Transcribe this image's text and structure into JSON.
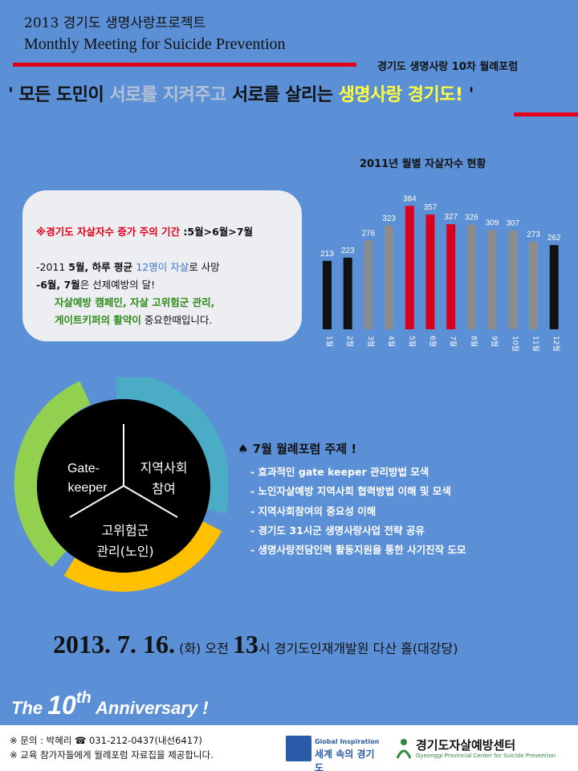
{
  "header": {
    "title_ko": "2013 경기도 생명사랑프로젝트",
    "title_en": "Monthly Meeting for Suicide Prevention",
    "forum_sub": "경기도 생명사랑 10차 월례포럼"
  },
  "slogan": {
    "part1": "' 모든 도민이 ",
    "part2": "서로를 지켜주고 ",
    "part3": "서로를 살리는 ",
    "part4": "생명사랑 경기도!",
    "part5": " '"
  },
  "warning": {
    "title_red": "※경기도 자살자수 증가 주의 기간",
    "title_black": " :5월>6월>7월",
    "l1_a": "-2011 ",
    "l1_b": "5월",
    "l1_c": ", 하루 평균 ",
    "l1_d": "12명이 자살",
    "l1_e": "로 사망",
    "l2_a": "-6월, 7월",
    "l2_b": "은 선제예방의 달!",
    "l3": "자살예방 캠페인, 자살 고위험군 관리,",
    "l4_a": "게이트키퍼의 활약이",
    "l4_b": " 중요한때입니다."
  },
  "chart_data": {
    "type": "bar",
    "title": "2011년 월별 자살자수 현황",
    "categories": [
      "1월",
      "2월",
      "3월",
      "4월",
      "5월",
      "6월",
      "7월",
      "8월",
      "9월",
      "10월",
      "11월",
      "12월"
    ],
    "values": [
      213,
      223,
      276,
      323,
      384,
      357,
      327,
      326,
      309,
      307,
      273,
      262
    ],
    "bar_colors": [
      "#111111",
      "#111111",
      "#8c8c8c",
      "#8c8c8c",
      "#d9001b",
      "#d9001b",
      "#d9001b",
      "#8c8c8c",
      "#8c8c8c",
      "#8c8c8c",
      "#8c8c8c",
      "#111111"
    ],
    "data_labels": true,
    "grid": false
  },
  "donut": {
    "seg1": "Gate-",
    "seg1b": "keeper",
    "seg2": "지역사회",
    "seg2b": "참여",
    "seg3": "고위험군",
    "seg3b": "관리(노인)",
    "colors": {
      "green": "#92d050",
      "teal": "#4bacc6",
      "yellow": "#ffc000",
      "center": "#000000"
    }
  },
  "themes": {
    "title": "♠ 7월 월례포럼 주제 !",
    "items": [
      "- 효과적인 gate keeper 관리방법 모색",
      "- 노인자살예방 지역사회 협력방법 이해 및 모색",
      "- 지역사회참여의 중요성 이해",
      "- 경기도 31시군 생명사랑사업 전략 공유",
      "- 생명사랑전담인력 활동지원을 통한 사기진작 도모"
    ]
  },
  "event": {
    "date": "2013. 7. 16.",
    "day": "(화)",
    "am": "오전",
    "hour": "13",
    "venue": "시 경기도인재개발원 다산 홀(대강당)"
  },
  "anniversary": {
    "pre": "The ",
    "num": "10",
    "sup": "th",
    "post": " Anniversary !"
  },
  "footer": {
    "contact": "※ 문의 : 박혜리 ☎ 031-212-0437(내선6417)",
    "note": "※ 교육 참가자들에게 월례포럼 자료집을 제공합니다.",
    "logo1_small": "Global Inspiration",
    "logo1_main": "세계 속의 경기도",
    "logo2_main": "경기도자살예방센터",
    "logo2_sub": "Gyeonggi Provincial Center for Suicide Prevention"
  }
}
